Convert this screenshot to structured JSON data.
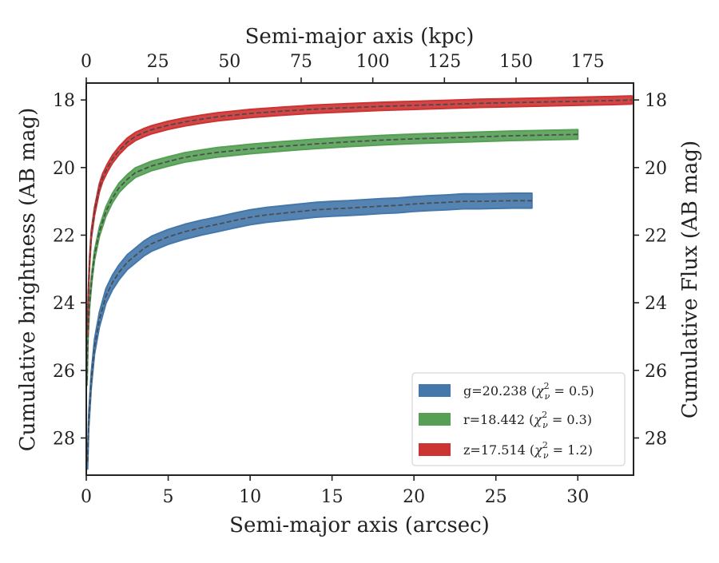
{
  "chart_data": {
    "type": "line",
    "title": "",
    "xlabel": "Semi-major axis (arcsec)",
    "x2label": "Semi-major axis (kpc)",
    "ylabel": "Cumulative brightness (AB mag)",
    "y2label": "Cumulative Flux (AB mag)",
    "xlim": [
      0,
      33.4
    ],
    "x2lim": [
      0,
      191
    ],
    "ylim": [
      29.1,
      17.5
    ],
    "y_inverted": true,
    "xticks": [
      0,
      5,
      10,
      15,
      20,
      25,
      30
    ],
    "x2ticks": [
      0,
      25,
      50,
      75,
      100,
      125,
      150,
      175
    ],
    "yticks": [
      18,
      20,
      22,
      24,
      26,
      28
    ],
    "grid": false,
    "legend_position": "lower-right",
    "series": [
      {
        "name": "g=20.238 (χ²ν = 0.5)",
        "legend_main": "g=20.238 (",
        "legend_chi": "χ",
        "legend_sup": "2",
        "legend_sub": "ν",
        "legend_tail": " = 0.5)",
        "color": "#4477aa",
        "band_width": 0.22,
        "x": [
          0.08,
          0.15,
          0.3,
          0.5,
          0.8,
          1.2,
          1.6,
          2.0,
          2.5,
          3.0,
          3.5,
          4.0,
          5.0,
          6.0,
          7.0,
          8.0,
          9.0,
          10.0,
          11.0,
          12.0,
          13.0,
          14.0,
          15.0,
          16.0,
          17.0,
          18.0,
          19.0,
          20.0,
          21.0,
          22.0,
          23.0,
          24.0,
          25.0,
          26.0,
          27.2
        ],
        "y": [
          28.7,
          27.5,
          26.3,
          25.3,
          24.5,
          23.8,
          23.4,
          23.1,
          22.8,
          22.6,
          22.4,
          22.25,
          22.05,
          21.9,
          21.78,
          21.68,
          21.57,
          21.47,
          21.4,
          21.35,
          21.3,
          21.25,
          21.22,
          21.2,
          21.17,
          21.14,
          21.12,
          21.08,
          21.05,
          21.03,
          21.0,
          21.0,
          20.99,
          20.98,
          20.98
        ]
      },
      {
        "name": "r=18.442 (χ²ν = 0.3)",
        "legend_main": "r=18.442 (",
        "legend_chi": "χ",
        "legend_sup": "2",
        "legend_sub": "ν",
        "legend_tail": " = 0.3)",
        "color": "#55a055",
        "band_width": 0.14,
        "x": [
          0.05,
          0.1,
          0.2,
          0.35,
          0.5,
          0.8,
          1.2,
          1.6,
          2.0,
          2.5,
          3.0,
          4.0,
          5.0,
          6.0,
          7.0,
          8.0,
          9.0,
          10.0,
          12.0,
          14.0,
          16.0,
          18.0,
          20.0,
          22.0,
          24.0,
          26.0,
          28.0,
          30.0
        ],
        "y": [
          26.3,
          25.0,
          24.0,
          23.2,
          22.6,
          21.9,
          21.3,
          20.9,
          20.6,
          20.35,
          20.15,
          19.95,
          19.82,
          19.7,
          19.62,
          19.55,
          19.5,
          19.45,
          19.37,
          19.3,
          19.24,
          19.19,
          19.15,
          19.12,
          19.09,
          19.06,
          19.04,
          19.02
        ]
      },
      {
        "name": "z=17.514 (χ²ν = 1.2)",
        "legend_main": "z=17.514 (",
        "legend_chi": "χ",
        "legend_sup": "2",
        "legend_sub": "ν",
        "legend_tail": " = 1.2)",
        "color": "#cc3333",
        "band_width": 0.12,
        "x": [
          0.08,
          0.12,
          0.2,
          0.3,
          0.5,
          0.8,
          1.0,
          1.3,
          1.6,
          2.0,
          2.5,
          3.0,
          3.5,
          4.0,
          5.0,
          6.0,
          7.0,
          8.0,
          9.0,
          10.0,
          12.0,
          14.0,
          16.0,
          18.0,
          20.0,
          22.0,
          24.0,
          26.0,
          28.0,
          30.0,
          32.0,
          33.3
        ],
        "y": [
          24.8,
          23.8,
          22.8,
          22.0,
          21.3,
          20.6,
          20.3,
          20.0,
          19.75,
          19.5,
          19.25,
          19.08,
          18.97,
          18.88,
          18.75,
          18.65,
          18.57,
          18.5,
          18.45,
          18.4,
          18.33,
          18.27,
          18.23,
          18.19,
          18.16,
          18.13,
          18.1,
          18.08,
          18.06,
          18.04,
          18.02,
          18.0
        ]
      }
    ]
  }
}
